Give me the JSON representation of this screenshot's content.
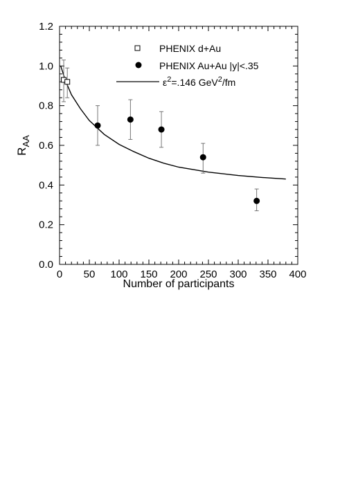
{
  "chart_data": {
    "type": "scatter",
    "xlabel": "Number of participants",
    "ylabel": {
      "main": "R",
      "sub": "AA"
    },
    "xlim": [
      0,
      400
    ],
    "ylim": [
      0.0,
      1.2
    ],
    "x_ticks": [
      0,
      50,
      100,
      150,
      200,
      250,
      300,
      350,
      400
    ],
    "y_ticks": [
      0.0,
      0.2,
      0.4,
      0.6,
      0.8,
      1.0,
      1.2
    ],
    "x_tick_labels": [
      "0",
      "50",
      "100",
      "150",
      "200",
      "250",
      "300",
      "350",
      "400"
    ],
    "y_tick_labels": [
      "0.0",
      "0.2",
      "0.4",
      "0.6",
      "0.8",
      "1.0",
      "1.2"
    ],
    "grid": false,
    "legend_position": "top-right",
    "series": [
      {
        "name": "PHENIX d+Au",
        "marker": "open-square",
        "points": [
          {
            "x": 7,
            "y": 0.93,
            "err_low": 0.11,
            "err_high": 0.1
          },
          {
            "x": 13,
            "y": 0.92,
            "err_low": 0.08,
            "err_high": 0.07
          }
        ]
      },
      {
        "name": "PHENIX Au+Au |y|<.35",
        "marker": "filled-circle",
        "points": [
          {
            "x": 64,
            "y": 0.7,
            "err_low": 0.1,
            "err_high": 0.1
          },
          {
            "x": 119,
            "y": 0.73,
            "err_low": 0.1,
            "err_high": 0.1
          },
          {
            "x": 171,
            "y": 0.68,
            "err_low": 0.09,
            "err_high": 0.09
          },
          {
            "x": 241,
            "y": 0.54,
            "err_low": 0.08,
            "err_high": 0.07
          },
          {
            "x": 331,
            "y": 0.32,
            "err_low": 0.05,
            "err_high": 0.06
          }
        ]
      },
      {
        "name": "ε²=.146 GeV²/fm",
        "marker": "line",
        "points": [
          {
            "x": 2,
            "y": 1.0
          },
          {
            "x": 10,
            "y": 0.925
          },
          {
            "x": 20,
            "y": 0.855
          },
          {
            "x": 35,
            "y": 0.785
          },
          {
            "x": 50,
            "y": 0.725
          },
          {
            "x": 75,
            "y": 0.655
          },
          {
            "x": 100,
            "y": 0.605
          },
          {
            "x": 125,
            "y": 0.568
          },
          {
            "x": 150,
            "y": 0.535
          },
          {
            "x": 175,
            "y": 0.51
          },
          {
            "x": 200,
            "y": 0.49
          },
          {
            "x": 250,
            "y": 0.465
          },
          {
            "x": 300,
            "y": 0.448
          },
          {
            "x": 340,
            "y": 0.438
          },
          {
            "x": 380,
            "y": 0.43
          }
        ]
      }
    ],
    "legend": [
      {
        "text": "PHENIX d+Au"
      },
      {
        "text": "PHENIX Au+Au |y|<.35"
      },
      {
        "base": "ε",
        "sup1": "2",
        "mid": "=.146 GeV",
        "sup2": "2",
        "tail": "/fm"
      }
    ]
  }
}
